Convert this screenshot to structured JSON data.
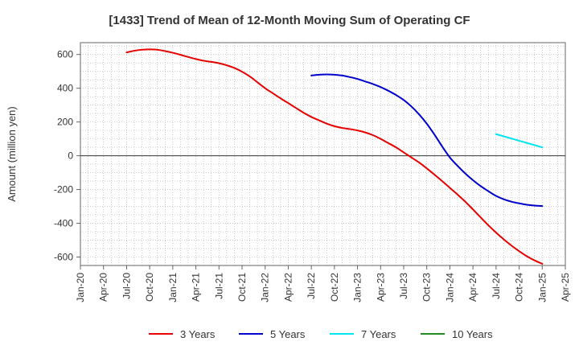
{
  "chart_data": {
    "type": "line",
    "title": "[1433]  Trend of Mean of 12-Month Moving Sum of Operating CF",
    "xlabel": "",
    "ylabel": "Amount (million yen)",
    "ylim": [
      -650,
      670
    ],
    "yticks": [
      -600,
      -400,
      -200,
      0,
      200,
      400,
      600
    ],
    "x_ticks": [
      "Jan-20",
      "Apr-20",
      "Jul-20",
      "Oct-20",
      "Jan-21",
      "Apr-21",
      "Jul-21",
      "Oct-21",
      "Jan-22",
      "Apr-22",
      "Jul-22",
      "Oct-22",
      "Jan-23",
      "Apr-23",
      "Jul-23",
      "Oct-23",
      "Jan-24",
      "Apr-24",
      "Jul-24",
      "Oct-24",
      "Jan-25",
      "Apr-25"
    ],
    "x_index_note": "x values are month offsets from Jan-20 (0) to Apr-25 (63)",
    "series": [
      {
        "name": "3 Years",
        "color": "#e60000",
        "x": [
          6,
          7,
          8,
          9,
          10,
          11,
          12,
          13,
          14,
          15,
          16,
          17,
          18,
          19,
          20,
          21,
          22,
          23,
          24,
          25,
          26,
          27,
          28,
          29,
          30,
          31,
          32,
          33,
          34,
          35,
          36,
          37,
          38,
          39,
          40,
          41,
          42,
          43,
          44,
          45,
          46,
          47,
          48,
          49,
          50,
          51,
          52,
          53,
          54,
          55,
          56,
          57,
          58,
          59,
          60
        ],
        "values": [
          612,
          622,
          628,
          630,
          628,
          620,
          610,
          598,
          585,
          573,
          563,
          556,
          548,
          536,
          520,
          498,
          470,
          435,
          400,
          370,
          340,
          312,
          283,
          255,
          230,
          210,
          190,
          175,
          165,
          158,
          150,
          138,
          122,
          100,
          75,
          50,
          20,
          -10,
          -40,
          -75,
          -112,
          -150,
          -190,
          -230,
          -272,
          -318,
          -365,
          -412,
          -455,
          -495,
          -532,
          -565,
          -595,
          -620,
          -640
        ]
      },
      {
        "name": "5 Years",
        "color": "#0000cc",
        "x": [
          30,
          31,
          32,
          33,
          34,
          35,
          36,
          37,
          38,
          39,
          40,
          41,
          42,
          43,
          44,
          45,
          46,
          47,
          48,
          49,
          50,
          51,
          52,
          53,
          54,
          55,
          56,
          57,
          58,
          59,
          60
        ],
        "values": [
          475,
          480,
          482,
          480,
          475,
          466,
          455,
          440,
          425,
          407,
          385,
          360,
          330,
          292,
          245,
          190,
          125,
          55,
          -10,
          -60,
          -105,
          -145,
          -180,
          -210,
          -238,
          -258,
          -272,
          -282,
          -290,
          -295,
          -298
        ]
      },
      {
        "name": "7 Years",
        "color": "#00e5ee",
        "x": [
          54,
          60
        ],
        "values": [
          128,
          50
        ]
      },
      {
        "name": "10 Years",
        "color": "#228b22",
        "x": [],
        "values": []
      }
    ]
  }
}
